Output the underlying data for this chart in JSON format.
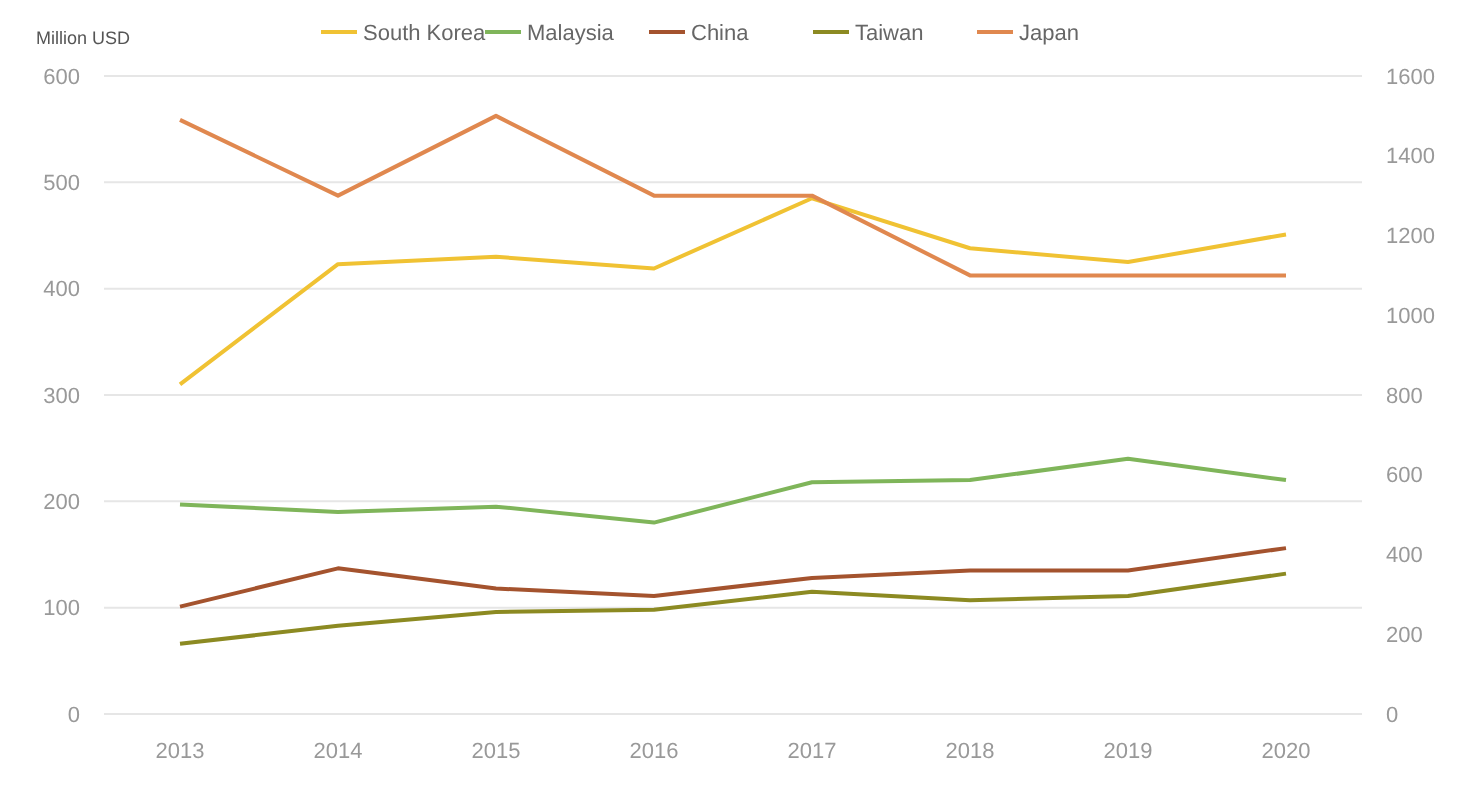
{
  "chart_data": {
    "type": "line",
    "ylabel": "Million USD",
    "categories": [
      "2013",
      "2014",
      "2015",
      "2016",
      "2017",
      "2018",
      "2019",
      "2020"
    ],
    "series": [
      {
        "name": "South Korea",
        "color": "#f0c233",
        "values": [
          310,
          423,
          430,
          419,
          485,
          438,
          425,
          451
        ]
      },
      {
        "name": "Malaysia",
        "color": "#7fb55a",
        "values": [
          197,
          190,
          195,
          180,
          218,
          220,
          240,
          220
        ]
      },
      {
        "name": "China",
        "color": "#a4532e",
        "values": [
          101,
          137,
          118,
          111,
          128,
          135,
          135,
          156
        ]
      },
      {
        "name": "Taiwan",
        "color": "#8c8a22",
        "values": [
          66,
          83,
          96,
          98,
          115,
          107,
          111,
          132
        ]
      },
      {
        "name": "Japan",
        "color": "#e0884f",
        "axis": "y2",
        "values": [
          1490,
          1300,
          1500,
          1300,
          1300,
          1100,
          1100,
          1100
        ]
      }
    ],
    "ylim": [
      0,
      600
    ],
    "yticks": [
      0,
      100,
      200,
      300,
      400,
      500,
      600
    ],
    "y2lim": [
      0,
      1600
    ],
    "y2ticks": [
      0,
      200,
      400,
      600,
      800,
      1000,
      1200,
      1400,
      1600
    ],
    "grid": "y",
    "legend": "top",
    "marker": "none",
    "line_style": "solid"
  }
}
